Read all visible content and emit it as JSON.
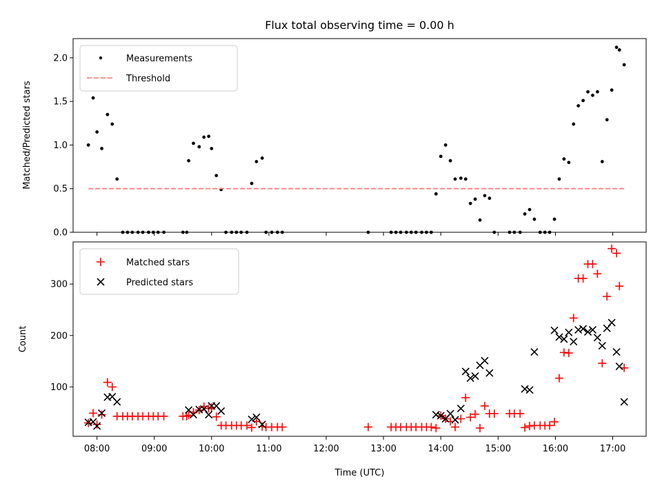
{
  "chart_data": [
    {
      "type": "scatter",
      "title": "Flux total observing time = 0.00 h",
      "ylabel": "Matched/Predicted stars",
      "xlabel": "",
      "xlim": [
        "07:35",
        "17:35"
      ],
      "ylim": [
        0,
        2.22
      ],
      "yticks": [
        "0.0",
        "0.5",
        "1.0",
        "1.5",
        "2.0"
      ],
      "grid": false,
      "legend_position": "top-left",
      "series": [
        {
          "name": "Measurements",
          "marker": "dot",
          "color": "#000000",
          "points": [
            [
              "07:51",
              1.0
            ],
            [
              "07:56",
              1.54
            ],
            [
              "08:00",
              1.15
            ],
            [
              "08:05",
              0.96
            ],
            [
              "08:11",
              1.35
            ],
            [
              "08:16",
              1.24
            ],
            [
              "08:21",
              0.61
            ],
            [
              "08:27",
              0.0
            ],
            [
              "08:32",
              0.0
            ],
            [
              "08:37",
              0.0
            ],
            [
              "08:43",
              0.0
            ],
            [
              "08:48",
              0.0
            ],
            [
              "08:54",
              0.0
            ],
            [
              "08:59",
              0.0
            ],
            [
              "09:04",
              0.0
            ],
            [
              "09:10",
              0.0
            ],
            [
              "09:30",
              0.0
            ],
            [
              "09:34",
              0.0
            ],
            [
              "09:36",
              0.82
            ],
            [
              "09:41",
              1.02
            ],
            [
              "09:47",
              0.98
            ],
            [
              "09:52",
              1.09
            ],
            [
              "09:57",
              1.1
            ],
            [
              "10:00",
              0.96
            ],
            [
              "10:05",
              0.65
            ],
            [
              "10:10",
              0.49
            ],
            [
              "10:15",
              0.0
            ],
            [
              "10:21",
              0.0
            ],
            [
              "10:26",
              0.0
            ],
            [
              "10:31",
              0.0
            ],
            [
              "10:37",
              0.0
            ],
            [
              "10:42",
              0.56
            ],
            [
              "10:47",
              0.81
            ],
            [
              "10:53",
              0.85
            ],
            [
              "10:57",
              0.0
            ],
            [
              "11:03",
              0.0
            ],
            [
              "11:09",
              0.0
            ],
            [
              "11:14",
              0.0
            ],
            [
              "12:44",
              0.0
            ],
            [
              "13:08",
              0.0
            ],
            [
              "13:13",
              0.0
            ],
            [
              "13:18",
              0.0
            ],
            [
              "13:24",
              0.0
            ],
            [
              "13:29",
              0.0
            ],
            [
              "13:34",
              0.0
            ],
            [
              "13:40",
              0.0
            ],
            [
              "13:45",
              0.0
            ],
            [
              "13:50",
              0.0
            ],
            [
              "13:55",
              0.44
            ],
            [
              "14:00",
              0.87
            ],
            [
              "14:05",
              1.0
            ],
            [
              "14:10",
              0.82
            ],
            [
              "14:15",
              0.61
            ],
            [
              "14:21",
              0.62
            ],
            [
              "14:26",
              0.61
            ],
            [
              "14:31",
              0.33
            ],
            [
              "14:36",
              0.38
            ],
            [
              "14:41",
              0.14
            ],
            [
              "14:46",
              0.42
            ],
            [
              "14:51",
              0.39
            ],
            [
              "14:56",
              0.0
            ],
            [
              "15:12",
              0.0
            ],
            [
              "15:17",
              0.0
            ],
            [
              "15:23",
              0.0
            ],
            [
              "15:28",
              0.21
            ],
            [
              "15:33",
              0.26
            ],
            [
              "15:38",
              0.15
            ],
            [
              "15:44",
              0.0
            ],
            [
              "15:49",
              0.0
            ],
            [
              "15:54",
              0.0
            ],
            [
              "15:59",
              0.15
            ],
            [
              "16:04",
              0.61
            ],
            [
              "16:09",
              0.84
            ],
            [
              "16:14",
              0.8
            ],
            [
              "16:19",
              1.24
            ],
            [
              "16:24",
              1.45
            ],
            [
              "16:29",
              1.51
            ],
            [
              "16:34",
              1.61
            ],
            [
              "16:39",
              1.57
            ],
            [
              "16:44",
              1.61
            ],
            [
              "16:49",
              0.81
            ],
            [
              "16:54",
              1.29
            ],
            [
              "16:59",
              1.63
            ],
            [
              "17:04",
              2.12
            ],
            [
              "17:07",
              2.09
            ],
            [
              "17:12",
              1.92
            ]
          ]
        },
        {
          "name": "Threshold",
          "style": "dashed",
          "color": "#ff7f7f",
          "points": [
            [
              "07:51",
              0.5
            ],
            [
              "17:12",
              0.5
            ]
          ]
        }
      ]
    },
    {
      "type": "scatter",
      "title": "",
      "ylabel": "Count",
      "xlabel": "Time (UTC)",
      "xlim": [
        "07:35",
        "17:35"
      ],
      "ylim": [
        4,
        382
      ],
      "yticks": [
        "100",
        "200",
        "300"
      ],
      "xticks": [
        "08:00",
        "09:00",
        "10:00",
        "11:00",
        "12:00",
        "13:00",
        "14:00",
        "15:00",
        "16:00",
        "17:00"
      ],
      "grid": false,
      "legend_position": "top-left",
      "series": [
        {
          "name": "Matched stars",
          "marker": "plus",
          "color": "#ff0000",
          "points": [
            [
              "07:51",
              30
            ],
            [
              "07:56",
              49
            ],
            [
              "08:00",
              27
            ],
            [
              "08:05",
              46
            ],
            [
              "08:11",
              109
            ],
            [
              "08:16",
              100
            ],
            [
              "08:21",
              43
            ],
            [
              "08:27",
              43
            ],
            [
              "08:32",
              43
            ],
            [
              "08:37",
              43
            ],
            [
              "08:43",
              43
            ],
            [
              "08:48",
              43
            ],
            [
              "08:54",
              43
            ],
            [
              "08:59",
              43
            ],
            [
              "09:04",
              43
            ],
            [
              "09:10",
              43
            ],
            [
              "09:30",
              43
            ],
            [
              "09:34",
              43
            ],
            [
              "09:36",
              45
            ],
            [
              "09:41",
              51
            ],
            [
              "09:47",
              55
            ],
            [
              "09:52",
              62
            ],
            [
              "09:57",
              58
            ],
            [
              "10:00",
              60
            ],
            [
              "10:05",
              42
            ],
            [
              "10:10",
              25
            ],
            [
              "10:15",
              25
            ],
            [
              "10:21",
              25
            ],
            [
              "10:26",
              25
            ],
            [
              "10:31",
              25
            ],
            [
              "10:37",
              25
            ],
            [
              "10:42",
              21
            ],
            [
              "10:47",
              33
            ],
            [
              "10:53",
              23
            ],
            [
              "10:57",
              22
            ],
            [
              "11:03",
              22
            ],
            [
              "11:09",
              22
            ],
            [
              "11:14",
              22
            ],
            [
              "12:44",
              22
            ],
            [
              "13:08",
              22
            ],
            [
              "13:13",
              22
            ],
            [
              "13:18",
              22
            ],
            [
              "13:24",
              22
            ],
            [
              "13:29",
              22
            ],
            [
              "13:34",
              22
            ],
            [
              "13:40",
              22
            ],
            [
              "13:45",
              22
            ],
            [
              "13:50",
              22
            ],
            [
              "13:55",
              20
            ],
            [
              "14:00",
              44
            ],
            [
              "14:05",
              38
            ],
            [
              "14:10",
              33
            ],
            [
              "14:15",
              22
            ],
            [
              "14:21",
              38
            ],
            [
              "14:26",
              79
            ],
            [
              "14:31",
              41
            ],
            [
              "14:36",
              47
            ],
            [
              "14:41",
              20
            ],
            [
              "14:46",
              63
            ],
            [
              "14:51",
              48
            ],
            [
              "14:56",
              48
            ],
            [
              "15:12",
              48
            ],
            [
              "15:17",
              48
            ],
            [
              "15:23",
              48
            ],
            [
              "15:28",
              21
            ],
            [
              "15:33",
              24
            ],
            [
              "15:38",
              25
            ],
            [
              "15:44",
              25
            ],
            [
              "15:49",
              25
            ],
            [
              "15:54",
              25
            ],
            [
              "15:59",
              32
            ],
            [
              "16:04",
              117
            ],
            [
              "16:09",
              167
            ],
            [
              "16:14",
              166
            ],
            [
              "16:19",
              234
            ],
            [
              "16:24",
              311
            ],
            [
              "16:29",
              311
            ],
            [
              "16:34",
              339
            ],
            [
              "16:39",
              339
            ],
            [
              "16:44",
              320
            ],
            [
              "16:49",
              146
            ],
            [
              "16:54",
              276
            ],
            [
              "16:59",
              369
            ],
            [
              "17:04",
              360
            ],
            [
              "17:07",
              296
            ],
            [
              "17:12",
              137
            ]
          ]
        },
        {
          "name": "Predicted stars",
          "marker": "x",
          "color": "#000000",
          "points": [
            [
              "07:51",
              31
            ],
            [
              "07:56",
              32
            ],
            [
              "08:00",
              24
            ],
            [
              "08:05",
              49
            ],
            [
              "08:11",
              80
            ],
            [
              "08:16",
              81
            ],
            [
              "08:21",
              71
            ],
            [
              "09:36",
              55
            ],
            [
              "09:41",
              46
            ],
            [
              "09:47",
              56
            ],
            [
              "09:52",
              57
            ],
            [
              "09:57",
              46
            ],
            [
              "10:00",
              63
            ],
            [
              "10:05",
              63
            ],
            [
              "10:10",
              53
            ],
            [
              "10:42",
              37
            ],
            [
              "10:47",
              41
            ],
            [
              "10:53",
              27
            ],
            [
              "13:55",
              46
            ],
            [
              "14:00",
              44
            ],
            [
              "14:05",
              38
            ],
            [
              "14:10",
              48
            ],
            [
              "14:15",
              36
            ],
            [
              "14:21",
              58
            ],
            [
              "14:26",
              130
            ],
            [
              "14:31",
              117
            ],
            [
              "14:36",
              121
            ],
            [
              "14:41",
              142
            ],
            [
              "14:46",
              151
            ],
            [
              "14:51",
              127
            ],
            [
              "15:28",
              96
            ],
            [
              "15:33",
              94
            ],
            [
              "15:38",
              168
            ],
            [
              "15:59",
              210
            ],
            [
              "16:04",
              197
            ],
            [
              "16:09",
              193
            ],
            [
              "16:14",
              206
            ],
            [
              "16:19",
              188
            ],
            [
              "16:24",
              211
            ],
            [
              "16:29",
              213
            ],
            [
              "16:34",
              207
            ],
            [
              "16:39",
              211
            ],
            [
              "16:44",
              196
            ],
            [
              "16:49",
              180
            ],
            [
              "16:54",
              214
            ],
            [
              "16:59",
              225
            ],
            [
              "17:04",
              168
            ],
            [
              "17:07",
              140
            ],
            [
              "17:12",
              71
            ]
          ]
        }
      ]
    }
  ]
}
